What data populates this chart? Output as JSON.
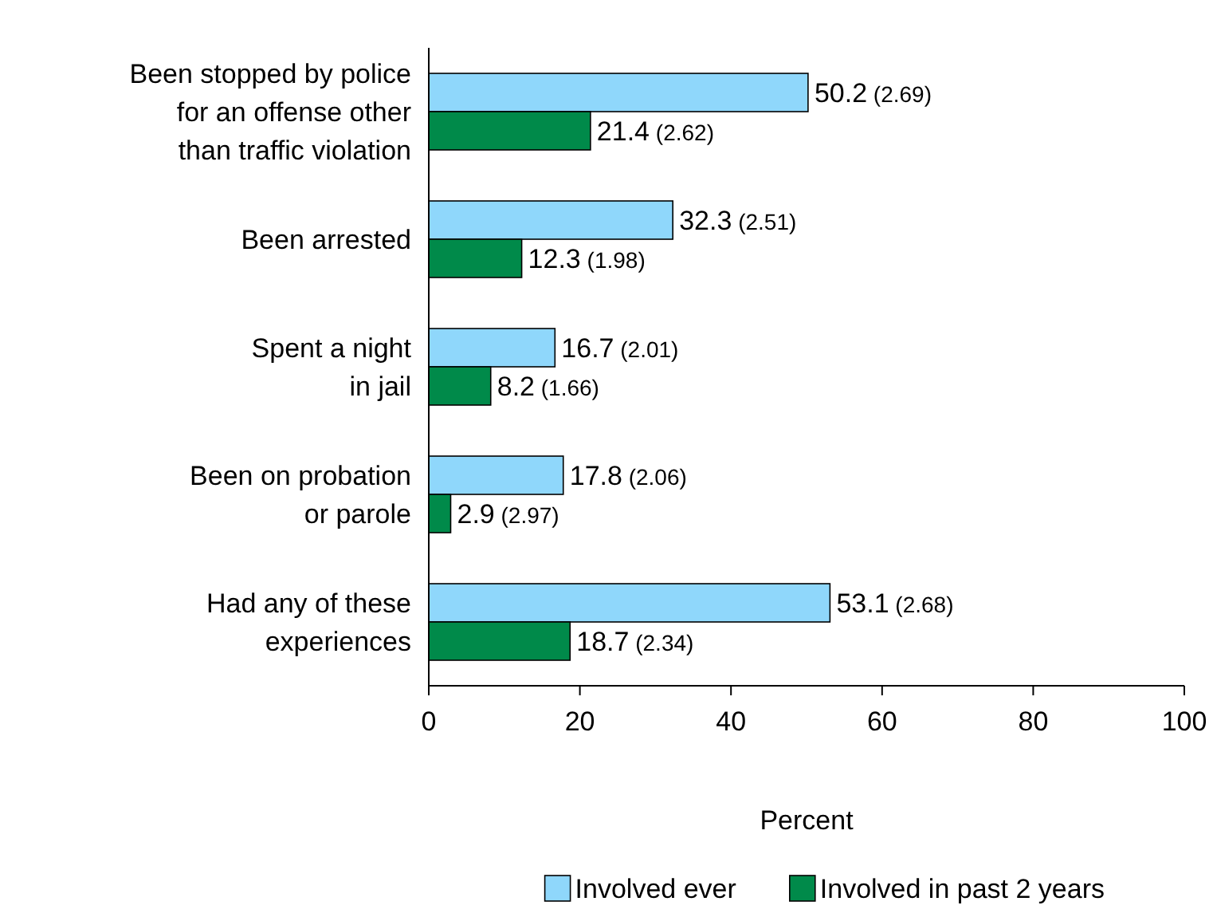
{
  "chart_data": {
    "type": "bar",
    "orientation": "horizontal",
    "categories": [
      "Been stopped by police\nfor an offense other\nthan traffic violation",
      "Been arrested",
      "Spent a night\nin jail",
      "Been on probation\nor parole",
      "Had any of these\nexperiences"
    ],
    "series": [
      {
        "name": "Involved ever",
        "color": "#8fd7fb",
        "values": [
          50.2,
          32.3,
          16.7,
          17.8,
          53.1
        ],
        "value_labels": [
          "50.2 (2.69)",
          "32.3 (2.51)",
          "16.7 (2.01)",
          "17.8 (2.06)",
          "53.1 (2.68)"
        ]
      },
      {
        "name": "Involved in past 2 years",
        "color": "#008a4a",
        "values": [
          21.4,
          12.3,
          8.2,
          2.9,
          18.7
        ],
        "value_labels": [
          "21.4 (2.62)",
          "12.3 (1.98)",
          "8.2 (1.66)",
          "2.9 (2.97)",
          "18.7 (2.34)"
        ]
      }
    ],
    "xlim": [
      0,
      100
    ],
    "xticks": [
      0,
      20,
      40,
      60,
      80,
      100
    ],
    "xlabel": "Percent",
    "legend": "bottom",
    "grid": false
  }
}
